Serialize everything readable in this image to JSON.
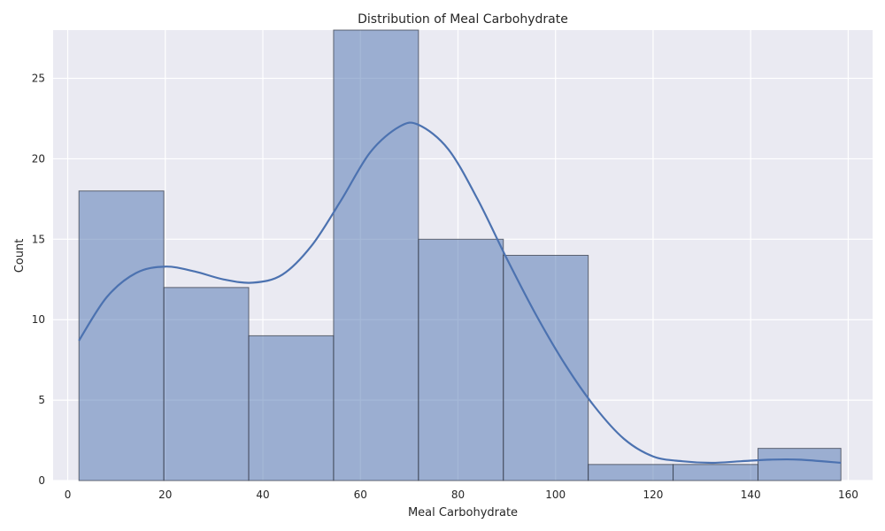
{
  "chart_data": {
    "type": "histogram",
    "title": "Distribution of Meal Carbohydrate",
    "xlabel": "Meal Carbohydrate",
    "ylabel": "Count",
    "xlim": [
      -3,
      165
    ],
    "ylim": [
      0,
      28
    ],
    "xticks": [
      0,
      20,
      40,
      60,
      80,
      100,
      120,
      140,
      160
    ],
    "yticks": [
      0,
      5,
      10,
      15,
      20,
      25
    ],
    "grid": true,
    "bins": [
      {
        "start": 2.3,
        "end": 19.7,
        "count": 18
      },
      {
        "start": 19.7,
        "end": 37.1,
        "count": 12
      },
      {
        "start": 37.1,
        "end": 54.5,
        "count": 9
      },
      {
        "start": 54.5,
        "end": 71.9,
        "count": 28
      },
      {
        "start": 71.9,
        "end": 89.3,
        "count": 15
      },
      {
        "start": 89.3,
        "end": 106.7,
        "count": 14
      },
      {
        "start": 106.7,
        "end": 124.1,
        "count": 1
      },
      {
        "start": 124.1,
        "end": 141.5,
        "count": 1
      },
      {
        "start": 141.5,
        "end": 158.5,
        "count": 2
      }
    ],
    "kde": {
      "x": [
        2.3,
        8,
        14,
        20,
        26,
        32,
        38,
        44,
        50,
        56,
        62,
        68,
        72,
        78,
        84,
        90,
        96,
        102,
        108,
        114,
        120,
        126,
        132,
        138,
        144,
        150,
        158.5
      ],
      "y": [
        8.7,
        11.4,
        12.9,
        13.3,
        13.0,
        12.5,
        12.3,
        12.8,
        14.6,
        17.4,
        20.4,
        22.0,
        22.1,
        20.6,
        17.5,
        13.8,
        10.3,
        7.2,
        4.6,
        2.6,
        1.5,
        1.2,
        1.1,
        1.2,
        1.3,
        1.3,
        1.1
      ]
    },
    "colors": {
      "bar_fill": "#4c72b0",
      "bar_edge": "#3a3f4b",
      "kde_line": "#4c72b0",
      "plot_bg": "#eaeaf2",
      "grid": "#ffffff"
    }
  }
}
